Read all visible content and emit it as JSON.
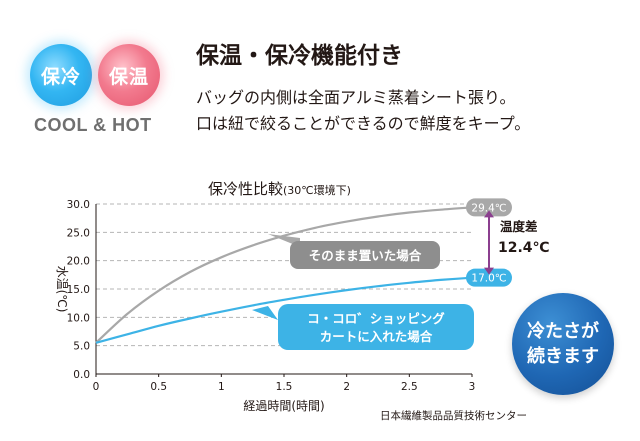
{
  "header": {
    "badge_cool": "保冷",
    "badge_hot": "保温",
    "cool_hot_label": "COOL & HOT",
    "headline": "保温・保冷機能付き",
    "desc_line_1": "バッグの内側は全面アルミ蒸着シート張り。",
    "desc_line_2": "口は紐で絞ることができるので鮮度をキープ。"
  },
  "badge_bottom": {
    "line_1": "冷たさが",
    "line_2": "続きます"
  },
  "source_note": "日本繊維製品品質技術センター",
  "colors": {
    "gray_series": "#a8a8a8",
    "blue_series": "#3db3e6",
    "difference_arrow": "#8b3f8f",
    "text": "#231815"
  },
  "chart_data": {
    "type": "line",
    "title": "保冷性比較",
    "subtitle": "(30℃環境下)",
    "xlabel": "経過時間(時間)",
    "ylabel": "水温(℃)",
    "xlim": [
      0,
      3
    ],
    "ylim": [
      0,
      30
    ],
    "x_ticks": [
      "0",
      "0.5",
      "1",
      "1.5",
      "2",
      "2.5",
      "3"
    ],
    "y_ticks": [
      "0.0",
      "5.0",
      "10.0",
      "15.0",
      "20.0",
      "25.0",
      "30.0"
    ],
    "grid": "horizontal-dashed",
    "series": [
      {
        "name": "そのまま置いた場合",
        "color": "#a8a8a8",
        "x": [
          0,
          0.25,
          0.5,
          0.75,
          1,
          1.25,
          1.5,
          1.75,
          2,
          2.25,
          2.5,
          2.75,
          3
        ],
        "values": [
          5.5,
          10.6,
          14.7,
          18.0,
          20.6,
          22.7,
          24.4,
          25.8,
          26.9,
          27.8,
          28.5,
          29.0,
          29.4
        ],
        "end_label": "29.4℃"
      },
      {
        "name": "コ・コロ゛ショッピングカートに入れた場合",
        "color": "#3db3e6",
        "x": [
          0,
          0.25,
          0.5,
          0.75,
          1,
          1.25,
          1.5,
          1.75,
          2,
          2.25,
          2.5,
          2.75,
          3
        ],
        "values": [
          5.5,
          7.0,
          8.5,
          9.8,
          11.0,
          12.1,
          13.1,
          14.0,
          14.8,
          15.5,
          16.1,
          16.6,
          17.0
        ],
        "end_label": "17.0℃"
      }
    ],
    "difference": {
      "label_1": "温度差",
      "label_2": "12.4℃"
    }
  }
}
